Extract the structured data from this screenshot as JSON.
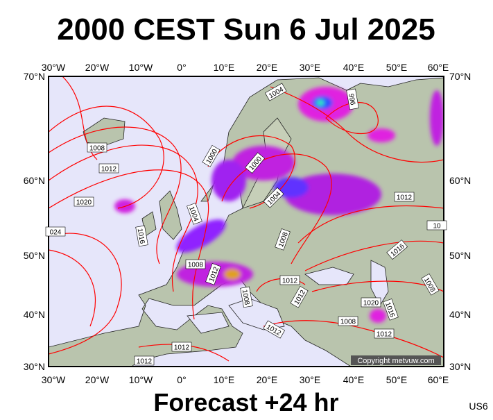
{
  "header": {
    "title": "2000 CEST Sun 6 Jul 2025"
  },
  "map": {
    "lon_labels": [
      "30°W",
      "20°W",
      "10°W",
      "0°",
      "10°E",
      "20°E",
      "30°E",
      "40°E",
      "50°E",
      "60°E"
    ],
    "lat_labels": [
      "70°N",
      "60°N",
      "50°N",
      "40°N",
      "30°N"
    ],
    "isobar_labels": [
      "1004",
      "996",
      "1008",
      "1012",
      "1000",
      "1000",
      "1020",
      "1004",
      "1012",
      "1004",
      "024",
      "1016",
      "10",
      "1008",
      "1016",
      "1008",
      "1012",
      "1012",
      "1008",
      "1008",
      "1012",
      "1020",
      "1016",
      "1008",
      "1012",
      "1012",
      "1012",
      "1012"
    ],
    "copyright": "Copyright metvuw.com"
  },
  "footer": {
    "forecast": "Forecast +24 hr",
    "code": "US6"
  }
}
